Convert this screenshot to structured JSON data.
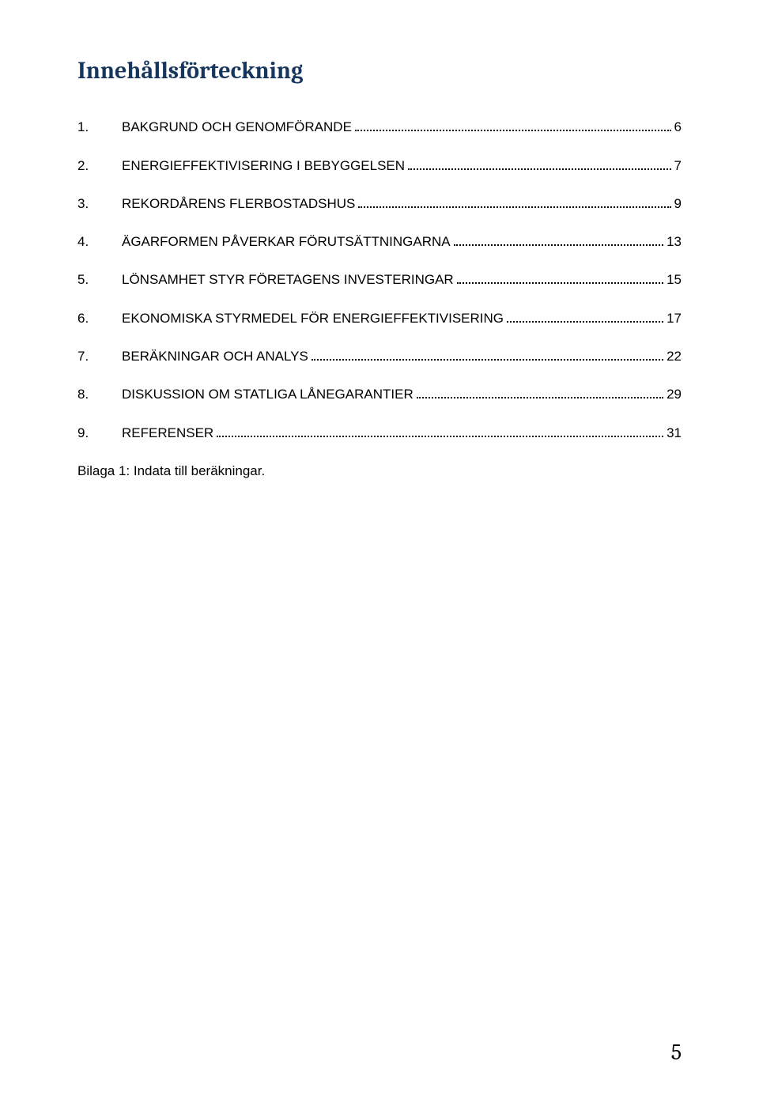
{
  "document_title": "Innehållsförteckning",
  "toc": {
    "items": [
      {
        "num": "1.",
        "label": "BAKGRUND OCH GENOMFÖRANDE",
        "page": "6"
      },
      {
        "num": "2.",
        "label": "ENERGIEFFEKTIVISERING I BEBYGGELSEN",
        "page": "7"
      },
      {
        "num": "3.",
        "label": "REKORDÅRENS FLERBOSTADSHUS",
        "page": "9"
      },
      {
        "num": "4.",
        "label": "ÄGARFORMEN PÅVERKAR FÖRUTSÄTTNINGARNA",
        "page": "13"
      },
      {
        "num": "5.",
        "label": "LÖNSAMHET STYR FÖRETAGENS INVESTERINGAR",
        "page": "15"
      },
      {
        "num": "6.",
        "label": "EKONOMISKA STYRMEDEL FÖR ENERGIEFFEKTIVISERING",
        "page": "17"
      },
      {
        "num": "7.",
        "label": "BERÄKNINGAR OCH ANALYS",
        "page": "22"
      },
      {
        "num": "8.",
        "label": "DISKUSSION OM STATLIGA LÅNEGARANTIER",
        "page": "29"
      },
      {
        "num": "9.",
        "label": "REFERENSER",
        "page": "31"
      }
    ]
  },
  "appendix_text": "Bilaga 1: Indata till beräkningar.",
  "page_number": "5",
  "colors": {
    "title_color": "#17365d",
    "text_color": "#000000",
    "background": "#ffffff"
  },
  "fonts": {
    "title_family": "Cambria",
    "body_family": "Verdana",
    "title_size_pt": 22,
    "body_size_pt": 12,
    "page_number_size_pt": 20
  }
}
